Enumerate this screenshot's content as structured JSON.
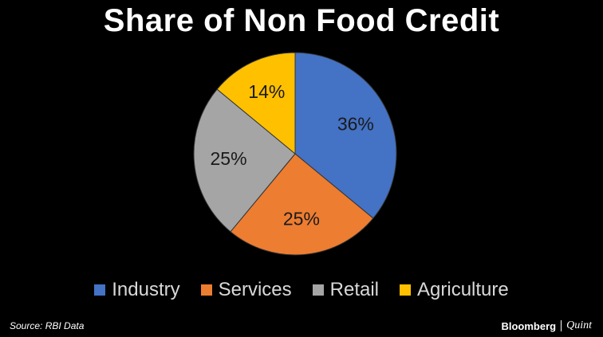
{
  "chart_data": {
    "type": "pie",
    "title": "Share of Non Food Credit",
    "categories": [
      "Industry",
      "Services",
      "Retail",
      "Agriculture"
    ],
    "values": [
      36,
      25,
      25,
      14
    ],
    "value_labels": [
      "36%",
      "25%",
      "25%",
      "14%"
    ],
    "colors": [
      "#4472C4",
      "#ED7D31",
      "#A5A5A5",
      "#FFC000"
    ],
    "legend_position": "bottom"
  },
  "footer": {
    "source": "Source: RBI Data",
    "brand_primary": "Bloomberg",
    "brand_secondary": "Quint"
  }
}
